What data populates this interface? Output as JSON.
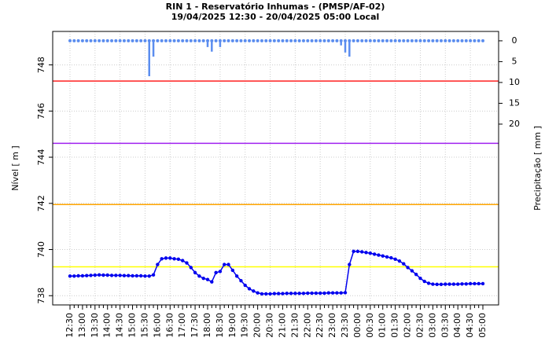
{
  "chart_data": {
    "type": "line",
    "title": "RIN 1 - Reservatório Inhumas - (PMSP/AF-02)",
    "subtitle": "19/04/2025 12:30  -  20/04/2025 05:00  Local",
    "y_label": "Nível [ m ]",
    "y2_label": "Precipitação [ mm ]",
    "categories": [
      "12:30",
      null,
      null,
      "13:00",
      null,
      null,
      "13:30",
      null,
      null,
      "14:00",
      null,
      null,
      "14:30",
      null,
      null,
      "15:00",
      null,
      null,
      "15:30",
      null,
      null,
      "16:00",
      null,
      null,
      "16:30",
      null,
      null,
      "17:00",
      null,
      null,
      "17:30",
      null,
      null,
      "18:00",
      null,
      null,
      "18:30",
      null,
      null,
      "19:00",
      null,
      null,
      "19:30",
      null,
      null,
      "20:00",
      null,
      null,
      "20:30",
      null,
      null,
      "21:00",
      null,
      null,
      "21:30",
      null,
      null,
      "22:00",
      null,
      null,
      "22:30",
      null,
      null,
      "23:00",
      null,
      null,
      "23:30",
      null,
      null,
      "00:00",
      null,
      null,
      "00:30",
      null,
      null,
      "01:00",
      null,
      null,
      "01:30",
      null,
      null,
      "02:00",
      null,
      null,
      "02:30",
      null,
      null,
      "03:00",
      null,
      null,
      "03:30",
      null,
      null,
      "04:00",
      null,
      null,
      "04:30",
      null,
      null,
      "05:00"
    ],
    "series": [
      {
        "name": "Nível",
        "color": "#0000ee",
        "values": [
          738.85,
          738.85,
          738.86,
          738.86,
          738.87,
          738.88,
          738.89,
          738.9,
          738.89,
          738.89,
          738.88,
          738.88,
          738.88,
          738.87,
          738.87,
          738.86,
          738.86,
          738.86,
          738.85,
          738.85,
          738.9,
          739.35,
          739.6,
          739.63,
          739.63,
          739.6,
          739.58,
          739.52,
          739.42,
          739.22,
          739.0,
          738.85,
          738.75,
          738.7,
          738.6,
          739.0,
          739.05,
          739.35,
          739.35,
          739.1,
          738.85,
          738.65,
          738.45,
          738.3,
          738.2,
          738.12,
          738.08,
          738.08,
          738.08,
          738.09,
          738.09,
          738.09,
          738.1,
          738.1,
          738.1,
          738.1,
          738.1,
          738.11,
          738.11,
          738.11,
          738.11,
          738.11,
          738.12,
          738.12,
          738.12,
          738.12,
          738.13,
          739.35,
          739.92,
          739.92,
          739.9,
          739.87,
          739.84,
          739.8,
          739.76,
          739.72,
          739.68,
          739.64,
          739.58,
          739.5,
          739.38,
          739.22,
          739.08,
          738.92,
          738.75,
          738.62,
          738.54,
          738.5,
          738.49,
          738.49,
          738.5,
          738.5,
          738.5,
          738.5,
          738.51,
          738.51,
          738.52,
          738.52,
          738.52,
          738.52
        ]
      },
      {
        "name": "Precipitação",
        "color": "#5b8def",
        "axis": "y2",
        "values": [
          0,
          0,
          0,
          0,
          0,
          0,
          0,
          0,
          0,
          0,
          0,
          0,
          0,
          0,
          0,
          0,
          0,
          0,
          0,
          8.5,
          3.8,
          0,
          0,
          0,
          0,
          0,
          0,
          0,
          0,
          0,
          0,
          0,
          0,
          1.5,
          2.6,
          0,
          1.5,
          0,
          0,
          0,
          0,
          0,
          0,
          0,
          0,
          0,
          0,
          0,
          0,
          0,
          0,
          0,
          0,
          0,
          0,
          0,
          0,
          0,
          0,
          0,
          0,
          0,
          0,
          0,
          0,
          1.1,
          2.8,
          3.8,
          0,
          0,
          0,
          0,
          0,
          0,
          0,
          0,
          0,
          0,
          0,
          0,
          0,
          0,
          0,
          0,
          0,
          0,
          0,
          0,
          0,
          0,
          0,
          0,
          0,
          0,
          0,
          0,
          0,
          0,
          0,
          0
        ]
      }
    ],
    "reference_lines": [
      {
        "value": 747.3,
        "color": "#ff2020"
      },
      {
        "value": 744.6,
        "color": "#a020f0"
      },
      {
        "value": 741.95,
        "color": "#ffa500"
      },
      {
        "value": 739.25,
        "color": "#ffff00"
      }
    ],
    "ylim": [
      737.6,
      749.45
    ],
    "yticks": [
      738,
      740,
      742,
      744,
      746,
      748
    ],
    "y2lim": [
      63.4,
      -2.25
    ],
    "y2ticks": [
      0,
      5,
      10,
      15,
      20
    ],
    "grid": true
  }
}
